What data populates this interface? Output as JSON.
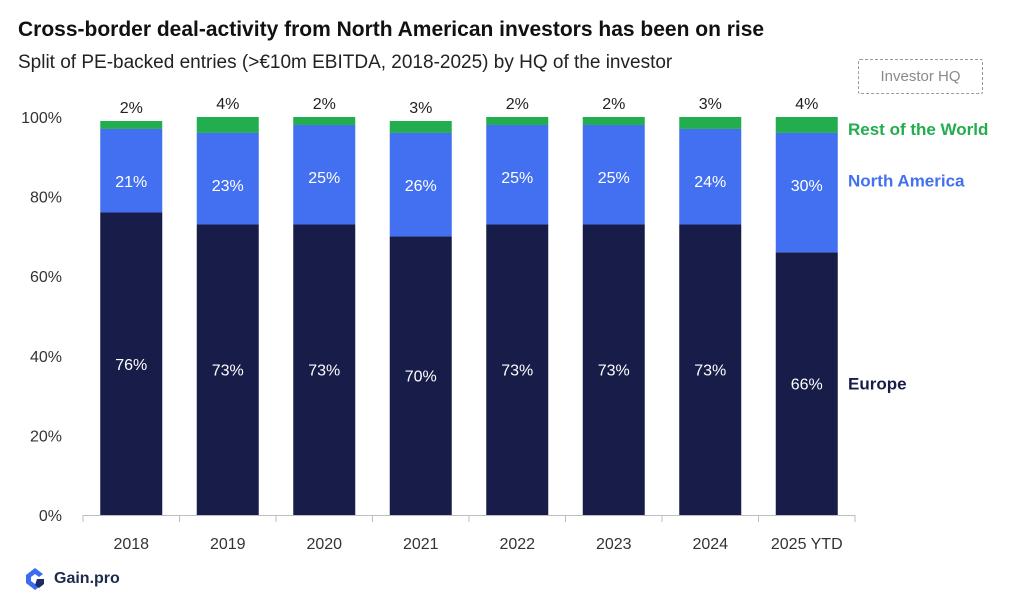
{
  "title": "Cross-border deal-activity from North American investors has been on rise",
  "subtitle": "Split of PE-backed entries (>€10m EBITDA, 2018-2025) by HQ of the investor",
  "legend_title": "Investor HQ",
  "brand": {
    "name": "Gain.pro",
    "icon": "gain-pro-logo-icon"
  },
  "colors": {
    "Europe": "#171c48",
    "North America": "#4270f0",
    "Rest of the World": "#22ad4e",
    "axis": "#bdbdbd",
    "tick_text": "#333333"
  },
  "chart_data": {
    "type": "bar",
    "stacked": true,
    "title": "Cross-border deal-activity from North American investors has been on rise",
    "subtitle": "Split of PE-backed entries (>€10m EBITDA, 2018-2025) by HQ of the investor",
    "categories": [
      "2018",
      "2019",
      "2020",
      "2021",
      "2022",
      "2023",
      "2024",
      "2025 YTD"
    ],
    "series": [
      {
        "name": "Europe",
        "values": [
          76,
          73,
          73,
          70,
          73,
          73,
          73,
          66
        ]
      },
      {
        "name": "North America",
        "values": [
          21,
          23,
          25,
          26,
          25,
          25,
          24,
          30
        ]
      },
      {
        "name": "Rest of the World",
        "values": [
          2,
          4,
          2,
          3,
          2,
          2,
          3,
          4
        ]
      }
    ],
    "yticks": [
      "0%",
      "20%",
      "40%",
      "60%",
      "80%",
      "100%"
    ],
    "ylim": [
      0,
      100
    ],
    "legend_title": "Investor HQ",
    "legend_position": "right",
    "grid": false
  }
}
